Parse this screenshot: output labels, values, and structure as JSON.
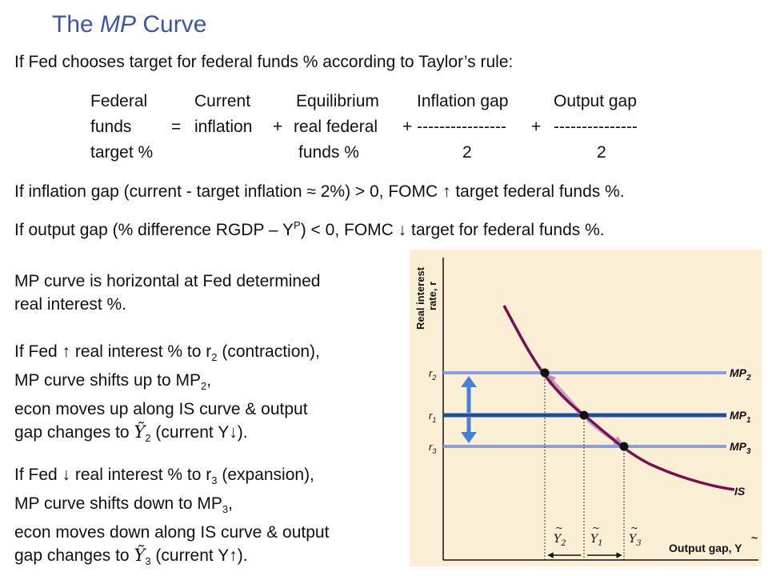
{
  "title": {
    "prefix": "The ",
    "italic": "MP",
    "suffix": " Curve"
  },
  "intro": "If Fed chooses target for federal funds % according to Taylor’s rule:",
  "formula": {
    "federal": [
      "Federal",
      "funds",
      "target %"
    ],
    "eq": "=",
    "current": [
      "Current",
      "inflation"
    ],
    "plus1": "+",
    "equilibrium": [
      "Equilibrium",
      "real federal",
      "funds %"
    ],
    "plus2": "+ ----------------",
    "inflation_gap": "Inflation gap",
    "denom1": "2",
    "plus3": "+",
    "output_gap": "Output gap",
    "dashes2": "---------------",
    "denom2": "2"
  },
  "rule1": "If inflation gap (current - target inflation ≈ 2%) > 0, FOMC ↑ target federal funds %.",
  "rule2": {
    "a": "If output gap (% difference RGDP – Y",
    "sup": "P",
    "b": ") < 0, FOMC ↓ target for federal funds %."
  },
  "p1": [
    "MP curve is horizontal at Fed determined",
    "real interest %."
  ],
  "p2": {
    "l1a": "If Fed ↑ real interest % to r",
    "l1sub": "2",
    "l1b": " (contraction),",
    "l2a": "MP curve shifts up to MP",
    "l2sub": "2",
    "l2b": ",",
    "l3": "econ moves up along IS curve & output",
    "l4a": "gap changes to ",
    "l4y": "Y",
    "l4sub": "2",
    "l4b": " (current Y↓)."
  },
  "p3": {
    "l1a": "If Fed ↓ real interest % to r",
    "l1sub": "3",
    "l1b": " (expansion),",
    "l2a": "MP curve shifts down to MP",
    "l2sub": "3",
    "l2b": ",",
    "l3": "econ moves down along IS curve & output",
    "l4a": "gap changes to ",
    "l4y": "Y",
    "l4sub": "3",
    "l4b": " (current Y↑)."
  },
  "graph": {
    "bg_color": "#fbf0d6",
    "is_color": "#7a1050",
    "mp1_color": "#1f4e9c",
    "mp_shift_color": "#8f9ed8",
    "arrow_color": "#4a7fd8",
    "yaxis_label_1": "Real interest",
    "yaxis_label_2": "rate, r",
    "xaxis_label": "Output gap, Y",
    "r2": "r",
    "r2sub": "2",
    "r1": "r",
    "r1sub": "1",
    "r3": "r",
    "r3sub": "3",
    "mp2": "MP",
    "mp2sub": "2",
    "mp1": "MP",
    "mp1sub": "1",
    "mp3": "MP",
    "mp3sub": "3",
    "is": "IS",
    "y2": "Y",
    "y2sub": "2",
    "y1": "Y",
    "y1sub": "1",
    "y3": "Y",
    "y3sub": "3"
  }
}
